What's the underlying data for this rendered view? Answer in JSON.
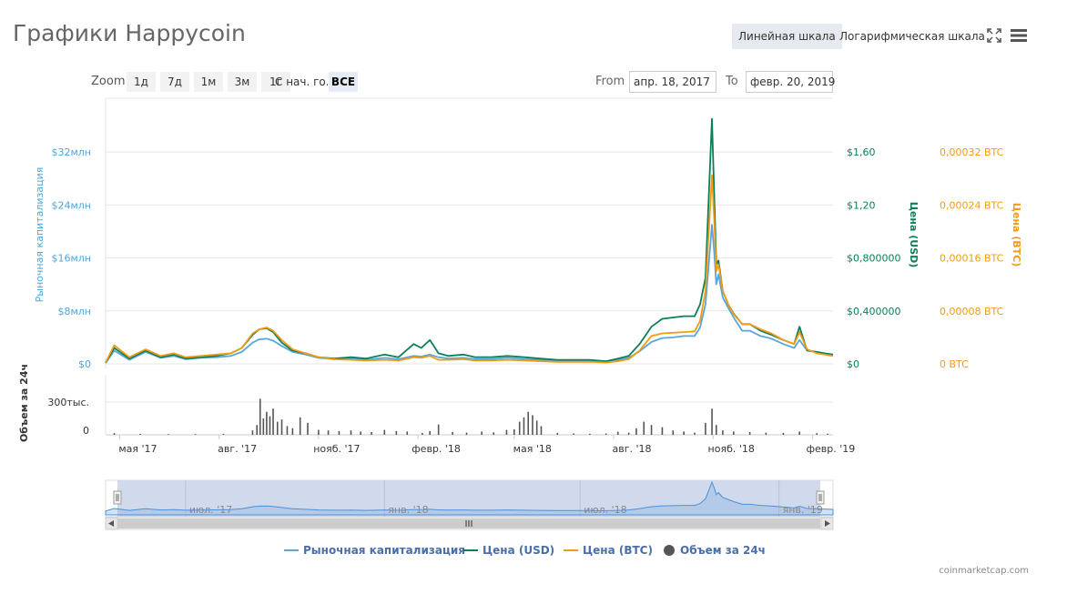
{
  "header": {
    "title": "Графики Happycoin",
    "linear_label": "Линейная шкала",
    "log_label": "Логарифмическая шкала",
    "fullscreen_icon": "fullscreen-icon",
    "menu_icon": "hamburger-menu-icon"
  },
  "zoom": {
    "label": "Zoom",
    "buttons": [
      "1д",
      "7д",
      "1м",
      "3м",
      "1г",
      "С нач. го.",
      "ВСЕ"
    ],
    "selected": "ВСЕ"
  },
  "range": {
    "from_label": "From",
    "from_value": "апр. 18, 2017",
    "to_label": "To",
    "to_value": "февр. 20, 2019"
  },
  "chart_data": {
    "type": "line",
    "title": "Графики Happycoin",
    "x_range": [
      "2017-04-18",
      "2019-02-20"
    ],
    "x_tick_labels": [
      "мая '17",
      "авг. '17",
      "нояб. '17",
      "февр. '18",
      "мая '18",
      "авг. '18",
      "нояб. '18",
      "февр. '19"
    ],
    "axes": {
      "left": {
        "label": "Рыночная капитализация",
        "ticks": [
          "$0",
          "$8млн",
          "$16млн",
          "$24млн",
          "$32млн"
        ],
        "range": [
          0,
          32000000
        ],
        "color": "#4ea6dc"
      },
      "right_usd": {
        "label": "Цена (USD)",
        "ticks": [
          "$0",
          "$0,400000",
          "$0,800000",
          "$1,20",
          "$1,60"
        ],
        "range": [
          0,
          1.6
        ],
        "color": "#0a7f5a"
      },
      "right_btc": {
        "label": "Цена (BTC)",
        "ticks": [
          "0 BTC",
          "0,00008 BTC",
          "0,00016 BTC",
          "0,00024 BTC",
          "0,00032 BTC"
        ],
        "range": [
          0,
          0.00032
        ],
        "color": "#f39c12"
      },
      "volume": {
        "label": "Объем за 24ч",
        "ticks": [
          "0",
          "300тыс."
        ],
        "range": [
          0,
          300000
        ],
        "color": "#555555"
      }
    },
    "grid": true,
    "legend_position": "bottom-center",
    "series": [
      {
        "name": "Рыночная капитализация",
        "color": "#5aa5dc",
        "x": [
          "2017-04-18",
          "2017-04-26",
          "2017-05-10",
          "2017-05-25",
          "2017-06-08",
          "2017-06-20",
          "2017-07-01",
          "2017-07-15",
          "2017-07-29",
          "2017-08-12",
          "2017-08-22",
          "2017-09-01",
          "2017-09-07",
          "2017-09-14",
          "2017-09-20",
          "2017-09-28",
          "2017-10-08",
          "2017-10-20",
          "2017-11-01",
          "2017-11-15",
          "2017-12-01",
          "2017-12-15",
          "2018-01-01",
          "2018-01-14",
          "2018-01-28",
          "2018-02-04",
          "2018-02-12",
          "2018-02-20",
          "2018-03-01",
          "2018-03-15",
          "2018-03-26",
          "2018-04-10",
          "2018-04-25",
          "2018-05-10",
          "2018-05-25",
          "2018-06-10",
          "2018-06-25",
          "2018-07-10",
          "2018-07-25",
          "2018-08-05",
          "2018-08-15",
          "2018-08-25",
          "2018-09-05",
          "2018-09-15",
          "2018-09-25",
          "2018-10-05",
          "2018-10-15",
          "2018-10-20",
          "2018-10-25",
          "2018-10-31",
          "2018-11-02",
          "2018-11-04",
          "2018-11-06",
          "2018-11-10",
          "2018-11-15",
          "2018-11-20",
          "2018-11-28",
          "2018-12-05",
          "2018-12-15",
          "2018-12-25",
          "2019-01-05",
          "2019-01-15",
          "2019-01-20",
          "2019-01-27",
          "2019-02-05",
          "2019-02-12",
          "2019-02-20"
        ],
        "values": [
          100000,
          2000000,
          600000,
          1800000,
          900000,
          1200000,
          700000,
          900000,
          1000000,
          1200000,
          1800000,
          3200000,
          3700000,
          3800000,
          3500000,
          2700000,
          1800000,
          1400000,
          900000,
          700000,
          800000,
          600000,
          900000,
          700000,
          1200000,
          1100000,
          1400000,
          1000000,
          800000,
          900000,
          700000,
          700000,
          900000,
          700000,
          600000,
          500000,
          500000,
          500000,
          400000,
          600000,
          900000,
          1900000,
          3300000,
          3900000,
          4000000,
          4200000,
          4200000,
          5500000,
          9000000,
          21000000,
          17000000,
          12000000,
          13500000,
          10000000,
          8500000,
          7000000,
          5000000,
          5000000,
          4200000,
          3800000,
          3000000,
          2400000,
          3600000,
          2000000,
          1800000,
          1600000,
          1300000
        ]
      },
      {
        "name": "Цена (USD)",
        "color": "#0a7f5a",
        "x": [
          "2017-04-18",
          "2017-04-26",
          "2017-05-10",
          "2017-05-25",
          "2017-06-08",
          "2017-06-20",
          "2017-07-01",
          "2017-07-15",
          "2017-07-29",
          "2017-08-12",
          "2017-08-22",
          "2017-09-01",
          "2017-09-07",
          "2017-09-14",
          "2017-09-20",
          "2017-09-28",
          "2017-10-08",
          "2017-10-20",
          "2017-11-01",
          "2017-11-15",
          "2017-12-01",
          "2017-12-15",
          "2018-01-01",
          "2018-01-14",
          "2018-01-28",
          "2018-02-04",
          "2018-02-12",
          "2018-02-20",
          "2018-03-01",
          "2018-03-15",
          "2018-03-26",
          "2018-04-10",
          "2018-04-25",
          "2018-05-10",
          "2018-05-25",
          "2018-06-10",
          "2018-06-25",
          "2018-07-10",
          "2018-07-25",
          "2018-08-05",
          "2018-08-15",
          "2018-08-25",
          "2018-09-05",
          "2018-09-15",
          "2018-09-25",
          "2018-10-05",
          "2018-10-15",
          "2018-10-20",
          "2018-10-25",
          "2018-10-31",
          "2018-11-02",
          "2018-11-04",
          "2018-11-06",
          "2018-11-10",
          "2018-11-15",
          "2018-11-20",
          "2018-11-28",
          "2018-12-05",
          "2018-12-15",
          "2018-12-25",
          "2019-01-05",
          "2019-01-15",
          "2019-01-20",
          "2019-01-27",
          "2019-02-05",
          "2019-02-12",
          "2019-02-20"
        ],
        "values": [
          0.01,
          0.12,
          0.04,
          0.1,
          0.05,
          0.07,
          0.04,
          0.05,
          0.06,
          0.08,
          0.12,
          0.22,
          0.26,
          0.27,
          0.24,
          0.16,
          0.1,
          0.08,
          0.05,
          0.04,
          0.05,
          0.04,
          0.07,
          0.05,
          0.15,
          0.12,
          0.18,
          0.08,
          0.06,
          0.07,
          0.05,
          0.05,
          0.06,
          0.05,
          0.04,
          0.03,
          0.03,
          0.03,
          0.02,
          0.04,
          0.06,
          0.15,
          0.28,
          0.34,
          0.35,
          0.36,
          0.36,
          0.45,
          0.65,
          1.85,
          1.3,
          0.75,
          0.78,
          0.55,
          0.45,
          0.38,
          0.3,
          0.3,
          0.25,
          0.22,
          0.18,
          0.15,
          0.28,
          0.1,
          0.09,
          0.08,
          0.07
        ]
      },
      {
        "name": "Цена (BTC)",
        "color": "#f39c12",
        "x": [
          "2017-04-18",
          "2017-04-26",
          "2017-05-10",
          "2017-05-25",
          "2017-06-08",
          "2017-06-20",
          "2017-07-01",
          "2017-07-15",
          "2017-07-29",
          "2017-08-12",
          "2017-08-22",
          "2017-09-01",
          "2017-09-07",
          "2017-09-14",
          "2017-09-20",
          "2017-09-28",
          "2017-10-08",
          "2017-10-20",
          "2017-11-01",
          "2017-11-15",
          "2017-12-01",
          "2017-12-15",
          "2018-01-01",
          "2018-01-14",
          "2018-01-28",
          "2018-02-04",
          "2018-02-12",
          "2018-02-20",
          "2018-03-01",
          "2018-03-15",
          "2018-03-26",
          "2018-04-10",
          "2018-04-25",
          "2018-05-10",
          "2018-05-25",
          "2018-06-10",
          "2018-06-25",
          "2018-07-10",
          "2018-07-25",
          "2018-08-05",
          "2018-08-15",
          "2018-08-25",
          "2018-09-05",
          "2018-09-15",
          "2018-09-25",
          "2018-10-05",
          "2018-10-15",
          "2018-10-20",
          "2018-10-25",
          "2018-10-31",
          "2018-11-02",
          "2018-11-04",
          "2018-11-06",
          "2018-11-10",
          "2018-11-15",
          "2018-11-20",
          "2018-11-28",
          "2018-12-05",
          "2018-12-15",
          "2018-12-25",
          "2019-01-05",
          "2019-01-15",
          "2019-01-20",
          "2019-01-27",
          "2019-02-05",
          "2019-02-12",
          "2019-02-20"
        ],
        "values": [
          2e-06,
          2.8e-05,
          1e-05,
          2.2e-05,
          1.2e-05,
          1.6e-05,
          1e-05,
          1.2e-05,
          1.4e-05,
          1.6e-05,
          2.4e-05,
          4.6e-05,
          5.2e-05,
          5.5e-05,
          5e-05,
          3.6e-05,
          2.2e-05,
          1.6e-05,
          1e-05,
          7e-06,
          6e-06,
          5e-06,
          6e-06,
          5e-06,
          1e-05,
          9e-06,
          1.2e-05,
          6e-06,
          6e-06,
          7e-06,
          5e-06,
          5e-06,
          6e-06,
          5e-06,
          4e-06,
          3e-06,
          3e-06,
          3e-06,
          2e-06,
          4e-06,
          7e-06,
          2e-05,
          4.2e-05,
          4.6e-05,
          4.7e-05,
          4.8e-05,
          4.9e-05,
          6.5e-05,
          0.00011,
          0.000285,
          0.00022,
          0.00014,
          0.00015,
          0.00011,
          9e-05,
          7.5e-05,
          6e-05,
          6e-05,
          5.2e-05,
          4.6e-05,
          3.6e-05,
          3e-05,
          4.8e-05,
          2.2e-05,
          1.6e-05,
          1.4e-05,
          1.2e-05
        ]
      },
      {
        "name": "Объем за 24ч",
        "color": "#555555",
        "type": "column",
        "x": [
          "2017-04-26",
          "2017-05-20",
          "2017-06-15",
          "2017-07-10",
          "2017-08-05",
          "2017-09-01",
          "2017-09-05",
          "2017-09-08",
          "2017-09-11",
          "2017-09-14",
          "2017-09-17",
          "2017-09-20",
          "2017-09-24",
          "2017-09-28",
          "2017-10-03",
          "2017-10-08",
          "2017-10-15",
          "2017-10-22",
          "2017-11-01",
          "2017-11-10",
          "2017-11-20",
          "2017-12-01",
          "2017-12-10",
          "2017-12-20",
          "2018-01-01",
          "2018-01-12",
          "2018-01-22",
          "2018-02-05",
          "2018-02-12",
          "2018-02-20",
          "2018-03-05",
          "2018-03-18",
          "2018-04-01",
          "2018-04-12",
          "2018-04-24",
          "2018-05-01",
          "2018-05-06",
          "2018-05-10",
          "2018-05-14",
          "2018-05-18",
          "2018-05-22",
          "2018-05-26",
          "2018-06-10",
          "2018-06-25",
          "2018-07-10",
          "2018-07-25",
          "2018-08-05",
          "2018-08-15",
          "2018-08-22",
          "2018-08-29",
          "2018-09-05",
          "2018-09-15",
          "2018-09-25",
          "2018-10-05",
          "2018-10-15",
          "2018-10-25",
          "2018-10-31",
          "2018-11-04",
          "2018-11-10",
          "2018-11-20",
          "2018-12-05",
          "2018-12-20",
          "2019-01-05",
          "2019-01-20",
          "2019-02-05",
          "2019-02-15"
        ],
        "values": [
          15000,
          8000,
          6000,
          7000,
          9000,
          40000,
          90000,
          330000,
          150000,
          210000,
          170000,
          240000,
          120000,
          140000,
          80000,
          60000,
          160000,
          110000,
          45000,
          40000,
          35000,
          40000,
          30000,
          25000,
          45000,
          35000,
          30000,
          18000,
          35000,
          95000,
          25000,
          20000,
          30000,
          22000,
          45000,
          50000,
          120000,
          160000,
          210000,
          180000,
          130000,
          80000,
          18000,
          12000,
          10000,
          12000,
          28000,
          20000,
          60000,
          120000,
          90000,
          70000,
          40000,
          30000,
          20000,
          110000,
          240000,
          90000,
          40000,
          30000,
          25000,
          20000,
          18000,
          30000,
          15000,
          10000
        ]
      }
    ]
  },
  "navigator": {
    "tick_labels": [
      "июл. '17",
      "янв. '18",
      "июл. '18",
      "янв. '19"
    ]
  },
  "legend": {
    "items": [
      {
        "label": "Рыночная капитализация",
        "color": "#5aa5dc",
        "shape": "line"
      },
      {
        "label": "Цена (USD)",
        "color": "#0a7f5a",
        "shape": "line"
      },
      {
        "label": "Цена (BTC)",
        "color": "#f39c12",
        "shape": "line"
      },
      {
        "label": "Объем за 24ч",
        "color": "#555555",
        "shape": "circle"
      }
    ]
  },
  "credits": "coinmarketcap.com"
}
